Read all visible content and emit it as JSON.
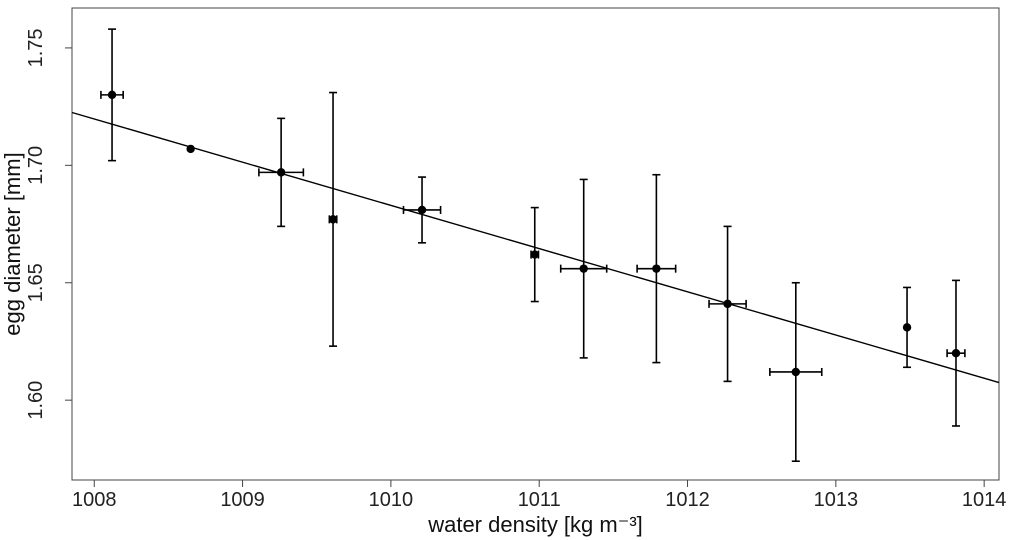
{
  "chart_data": {
    "type": "scatter",
    "xlabel": "water density [kg m⁻³]",
    "ylabel": "egg diameter [mm]",
    "xlim": [
      1007.85,
      1014.1
    ],
    "ylim": [
      1.566,
      1.767
    ],
    "x_ticks": [
      1008,
      1009,
      1010,
      1011,
      1012,
      1013,
      1014
    ],
    "x_tick_labels": [
      "1008",
      "1009",
      "1010",
      "1011",
      "1012",
      "1013",
      "1014"
    ],
    "y_ticks": [
      1.6,
      1.65,
      1.7,
      1.75
    ],
    "y_tick_labels": [
      "1.60",
      "1.65",
      "1.70",
      "1.75"
    ],
    "grid": false,
    "legend": "none",
    "points": [
      {
        "x": 1008.12,
        "y": 1.73,
        "xerr": 0.075,
        "yerr": 0.028
      },
      {
        "x": 1008.65,
        "y": 1.707,
        "xerr": 0.0,
        "yerr": 0.0
      },
      {
        "x": 1009.26,
        "y": 1.697,
        "xerr": 0.15,
        "yerr": 0.023
      },
      {
        "x": 1009.61,
        "y": 1.677,
        "xerr": 0.025,
        "yerr": 0.054
      },
      {
        "x": 1010.21,
        "y": 1.681,
        "xerr": 0.125,
        "yerr": 0.014
      },
      {
        "x": 1010.97,
        "y": 1.662,
        "xerr": 0.025,
        "yerr": 0.02
      },
      {
        "x": 1011.3,
        "y": 1.656,
        "xerr": 0.155,
        "yerr": 0.038
      },
      {
        "x": 1011.79,
        "y": 1.656,
        "xerr": 0.13,
        "yerr": 0.04
      },
      {
        "x": 1012.27,
        "y": 1.641,
        "xerr": 0.125,
        "yerr": 0.033
      },
      {
        "x": 1012.73,
        "y": 1.612,
        "xerr": 0.175,
        "yerr": 0.038
      },
      {
        "x": 1013.48,
        "y": 1.631,
        "xerr": 0.0,
        "yerr": 0.017
      },
      {
        "x": 1013.81,
        "y": 1.62,
        "xerr": 0.06,
        "yerr": 0.031
      }
    ],
    "fit_line": {
      "x": [
        1007.85,
        1014.1
      ],
      "y": [
        1.7225,
        1.6075
      ]
    },
    "colors": {
      "points": "#000000",
      "line": "#000000",
      "frame": "#444444"
    }
  }
}
